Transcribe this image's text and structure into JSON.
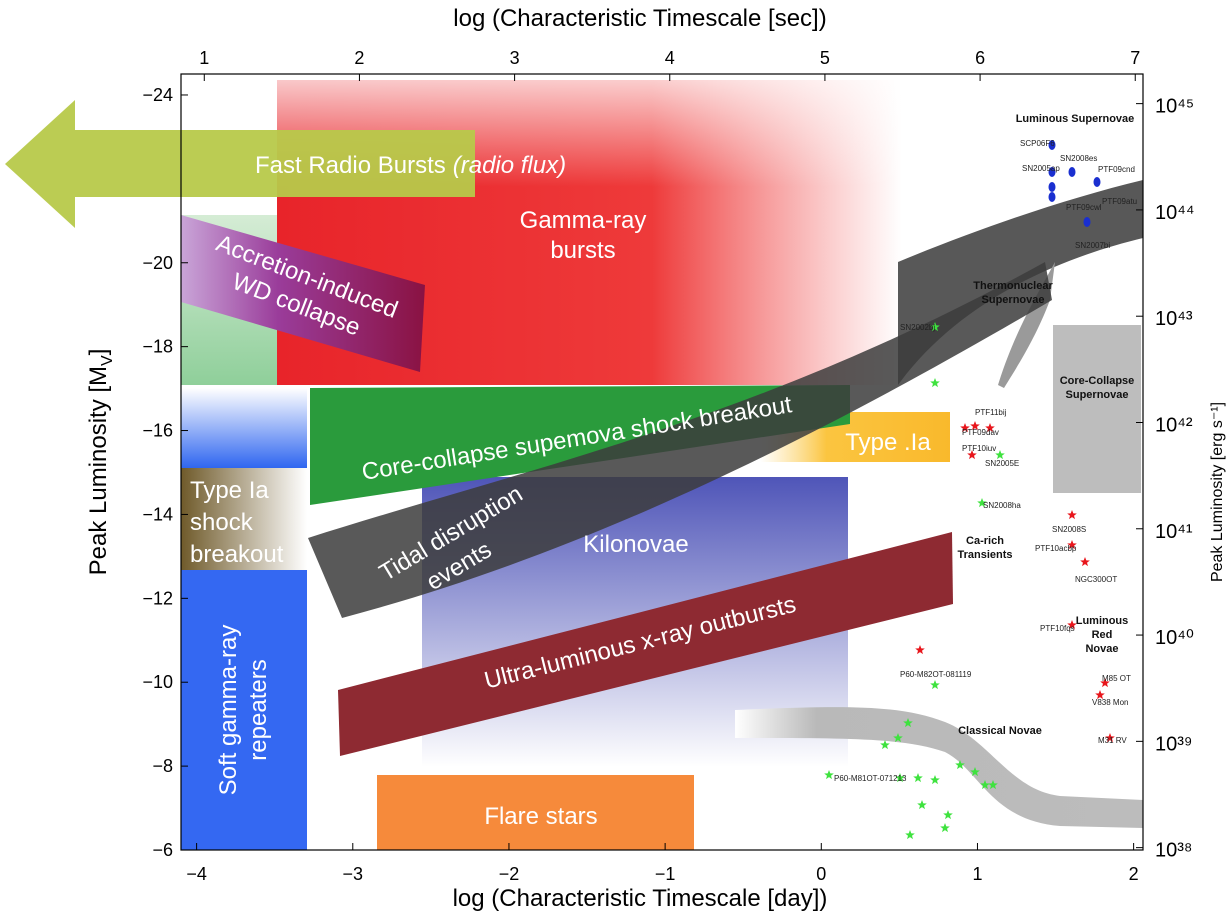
{
  "chart_data": {
    "type": "phase-space",
    "x2label": "log (Characteristic Timescale [sec])",
    "xlabel": "log (Characteristic Timescale [day])",
    "ylabel": [
      "Peak Luminosity [M",
      "V",
      "]"
    ],
    "y2label": "Peak Luminosity [erg s⁻¹]",
    "xlim": [
      -4.1,
      2.06
    ],
    "xticks": [
      {
        "value": -4,
        "label": "−4"
      },
      {
        "value": -3,
        "label": "−3"
      },
      {
        "value": -2,
        "label": "−2"
      },
      {
        "value": -1,
        "label": "−1"
      },
      0,
      1,
      2
    ],
    "x2lim": [
      0.85,
      7.05
    ],
    "x2ticks": [
      1,
      2,
      3,
      4,
      5,
      6,
      7
    ],
    "ylim": [
      -6,
      -24.5
    ],
    "yticks": [
      {
        "value": -24,
        "label": "−24"
      },
      {
        "value": -20,
        "label": "−20"
      },
      {
        "value": -18,
        "label": "−18"
      },
      {
        "value": -16,
        "label": "−16"
      },
      {
        "value": -14,
        "label": "−14"
      },
      {
        "value": -12,
        "label": "−12"
      },
      {
        "value": -10,
        "label": "−10"
      },
      {
        "value": -8,
        "label": "−8"
      },
      {
        "value": -6,
        "label": "−6"
      }
    ],
    "y2lim": [
      9.5e+37,
      1.9e+45
    ],
    "y2scale": "log",
    "y2ticks": [
      {
        "value": 1e+38,
        "label": "10³⁸"
      },
      {
        "value": 1e+39,
        "label": "10³⁹"
      },
      {
        "value": 1e+40,
        "label": "10⁴⁰"
      },
      {
        "value": 1e+41,
        "label": "10⁴¹"
      },
      {
        "value": 1e+42,
        "label": "10⁴²"
      },
      {
        "value": 1e+43,
        "label": "10⁴³"
      },
      {
        "value": 1e+44,
        "label": "10⁴⁴"
      },
      {
        "value": 1e+45,
        "label": "10⁴⁵"
      }
    ]
  },
  "regions": {
    "frb": [
      "Fast Radio Bursts",
      "(radio flux)"
    ],
    "grb": [
      "Gamma-ray",
      "bursts"
    ],
    "aic": [
      "Accretion-induced",
      "WD collapse"
    ],
    "ccsb": "Core-collapse supemova shock breakout",
    "type_dot_ia": "Type .Ia",
    "ia_sb": [
      "Type Ia",
      "shock",
      "breakout"
    ],
    "tde": [
      "Tidal disruption",
      "events"
    ],
    "kilonovae": "Kilonovae",
    "ulx": "Ultra-luminous x-ray outbursts",
    "sgr": [
      "Soft gamma-ray",
      "repeaters"
    ],
    "flare": "Flare stars"
  },
  "classes": {
    "luminous_sn": "Luminous Supernovae",
    "thermonuclear": [
      "Thermonuclear",
      "Supernovae"
    ],
    "core_collapse": [
      "Core-Collapse",
      "Supernovae"
    ],
    "ca_rich": [
      "Ca-rich",
      "Transients"
    ],
    "lrn": [
      "Luminous",
      "Red",
      "Novae"
    ],
    "classical_novae": "Classical Novae"
  },
  "objects": [
    "SCP06F6",
    "SN2005ap",
    "SN2008es",
    "PTF09cnd",
    "PTF09atu",
    "PTF09cwl",
    "SN2007bi",
    "SN2002bj",
    "PTF11bij",
    "PTF09dav",
    "PTF10iuv",
    "SN2005E",
    "SN2008ha",
    "SN2008S",
    "PTF10acbp",
    "NGC300OT",
    "PTF10fqs",
    "M85 OT",
    "V838 Mon",
    "M31 RV",
    "P60-M82OT-081119",
    "P60-M81OT-071213"
  ]
}
